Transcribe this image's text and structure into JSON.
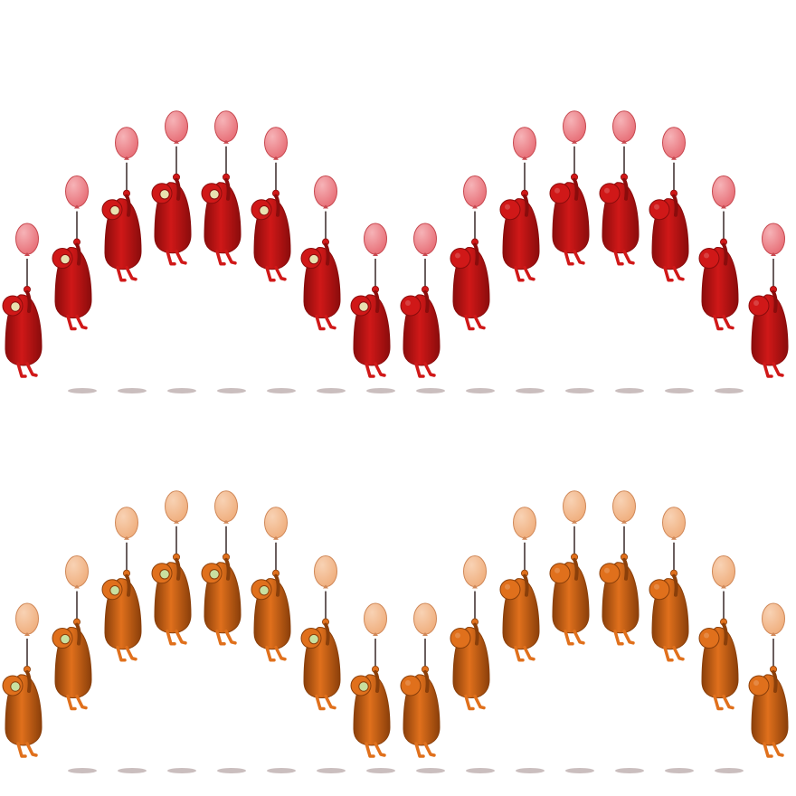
{
  "sprite_sheet": {
    "rows": [
      {
        "name": "red",
        "frames": 16,
        "colors": {
          "balloon": "#e8727a",
          "balloon_highlight": "#f6b3b7",
          "balloon_edge": "#c7484f",
          "body": "#d01818",
          "body_shade": "#8a0c0c",
          "face": "#e8e0b0",
          "shadow": "#b8a8a8"
        }
      },
      {
        "name": "orange",
        "frames": 16,
        "colors": {
          "balloon": "#f0b080",
          "balloon_highlight": "#f8d2b4",
          "balloon_edge": "#d08858",
          "body": "#e0701c",
          "body_shade": "#8a3f0a",
          "face": "#c8e0a0",
          "shadow": "#b8a8a8"
        }
      }
    ],
    "frame_states": [
      "face",
      "face",
      "face",
      "face",
      "face",
      "face",
      "face",
      "face",
      "back",
      "back",
      "back",
      "back",
      "back",
      "back",
      "back",
      "back"
    ],
    "frame_lift": [
      0,
      0.38,
      0.77,
      0.9,
      0.9,
      0.77,
      0.38,
      0,
      0,
      0.38,
      0.77,
      0.9,
      0.9,
      0.77,
      0.38,
      0
    ]
  }
}
